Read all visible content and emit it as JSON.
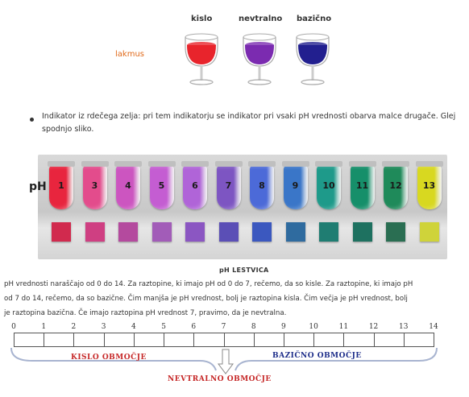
{
  "litmus": {
    "label": "lakmus",
    "headers": [
      "kislo",
      "nevtralno",
      "bazično"
    ],
    "colors": [
      "#e8242c",
      "#7b2bb0",
      "#221f8f"
    ]
  },
  "bullet_text": "Indikator iz rdečega zelja: pri tem indikatorju se indikator pri vsaki pH vrednosti obarva malce drugače. Glej spodnjo sliko.",
  "ph_panel": {
    "label": "pH",
    "tubes": [
      {
        "num": "1",
        "color": "#e8253e"
      },
      {
        "num": "3",
        "color": "#e34c8c"
      },
      {
        "num": "4",
        "color": "#cc55c0"
      },
      {
        "num": "5",
        "color": "#c45dd2"
      },
      {
        "num": "6",
        "color": "#b064d8"
      },
      {
        "num": "7",
        "color": "#7d55c2"
      },
      {
        "num": "8",
        "color": "#4c6ad8"
      },
      {
        "num": "9",
        "color": "#3a76c8"
      },
      {
        "num": "10",
        "color": "#1e9a8a"
      },
      {
        "num": "11",
        "color": "#168f6a"
      },
      {
        "num": "12",
        "color": "#1f8a5a"
      },
      {
        "num": "13",
        "color": "#d8d820"
      }
    ],
    "squares": [
      "#d12a4e",
      "#cf3f82",
      "#b44a9e",
      "#a25cb8",
      "#8b56c2",
      "#5b4fb6",
      "#3b58bf",
      "#2f6b9f",
      "#1f7d72",
      "#1e7160",
      "#2a6e52",
      "#cfd33a"
    ]
  },
  "scale_title": "pH LESTVICA",
  "paragraph": [
    "pH vrednosti naraščajo od 0 do 14. Za raztopine, ki imajo pH od 0 do 7, rečemo, da so kisle. Za raztopine, ki imajo pH",
    "od 7 do 14, rečemo, da so bazične. Čim manjša je pH vrednost, bolj je raztopina kisla. Čim večja je pH vrednost, bolj",
    "je raztopina bazična. Če imajo raztopina pH vrednost 7, pravimo, da je nevtralna."
  ],
  "scale": {
    "numbers": [
      "0",
      "1",
      "2",
      "3",
      "4",
      "5",
      "6",
      "7",
      "8",
      "9",
      "10",
      "11",
      "12",
      "13",
      "14"
    ],
    "acid_label": "KISLO OBMOČJE",
    "base_label": "BAZIČNO OBMOČJE",
    "neutral_label": "NEVTRALNO OBMOČJE",
    "acid_color": "#c62828",
    "base_color": "#1e2e8a",
    "brace_color": "#a8b4d0"
  }
}
